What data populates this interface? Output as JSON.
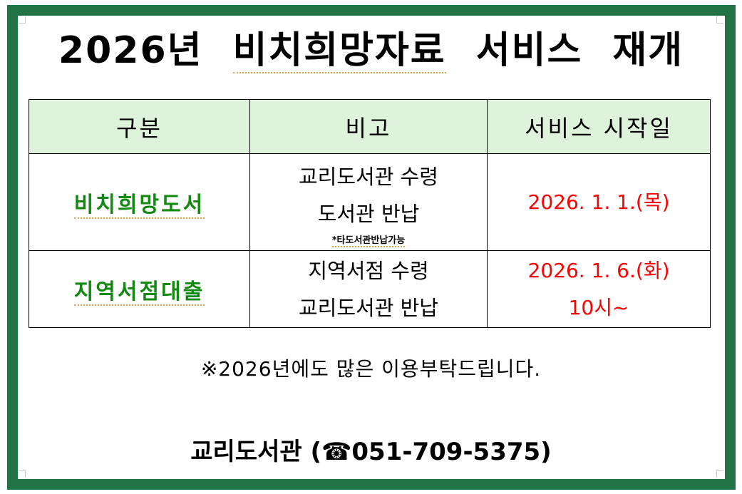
{
  "title": {
    "year": "2026년",
    "highlight": "비치희망자료",
    "rest": "서비스 재개"
  },
  "table": {
    "headers": [
      "구분",
      "비고",
      "서비스 시작일"
    ],
    "rows": [
      {
        "category": "비치희망도서",
        "notes": [
          "교리도서관 수령",
          "도서관 반납"
        ],
        "footnote": "*타도서관반납가능",
        "start": [
          "2026. 1. 1.(목)"
        ]
      },
      {
        "category": "지역서점대출",
        "notes": [
          "지역서점 수령",
          "교리도서관 반납"
        ],
        "start": [
          "2026. 1. 6.(화)",
          "10시~"
        ]
      }
    ]
  },
  "note": "※2026년에도 많은 이용부탁드립니다.",
  "footer": {
    "library": "교리도서관",
    "phone": "(☎051-709-5375)",
    "phone_icon": "telephone-icon"
  },
  "colors": {
    "border": "#217346",
    "header_bg": "#dff2dc",
    "category": "#128a12",
    "date": "#ff0000"
  }
}
